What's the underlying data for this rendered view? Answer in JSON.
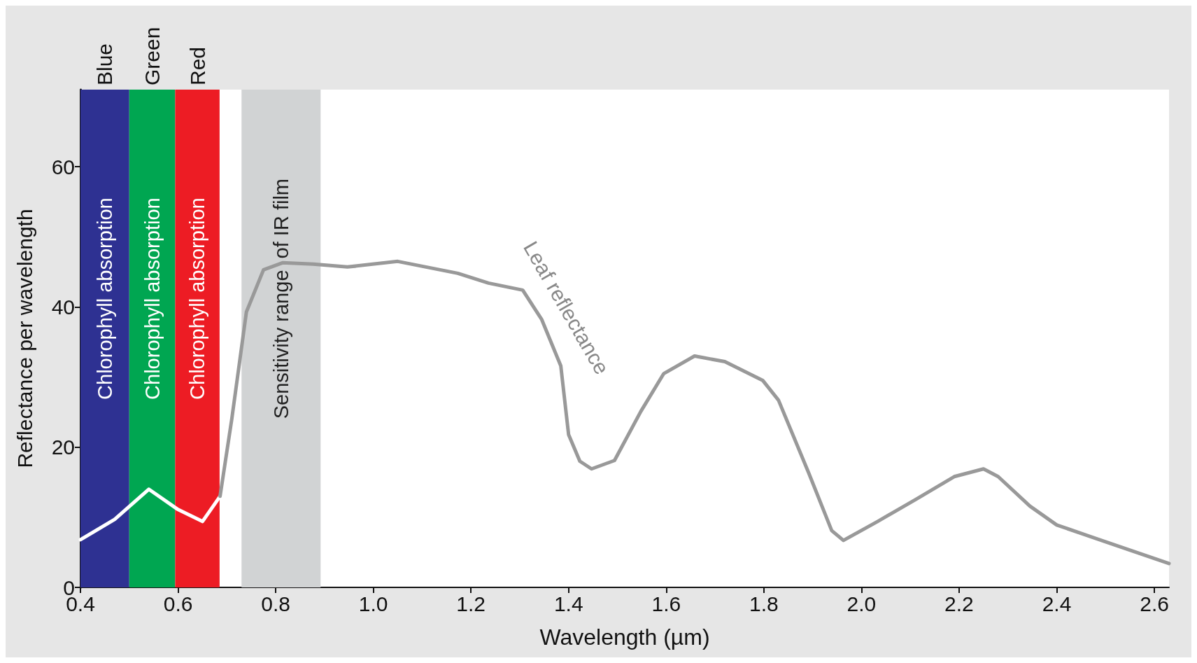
{
  "chart_data": {
    "type": "line",
    "xlabel": "Wavelength (µm)",
    "ylabel": "Reflectance per wavelength",
    "xlim": [
      0.4,
      2.63
    ],
    "ylim": [
      0,
      71
    ],
    "xticks": [
      0.4,
      0.6,
      0.8,
      {
        "value": 1,
        "label": "1.0"
      },
      1.2,
      1.4,
      1.6,
      1.8,
      {
        "value": 2,
        "label": "2.0"
      },
      2.2,
      2.4,
      2.6
    ],
    "yticks": [
      0,
      20,
      40,
      60
    ],
    "grid": false,
    "marker": "none",
    "line_style": "solid",
    "series": [
      {
        "color": "#ffffff",
        "x": [
          0.4,
          0.47,
          0.54,
          0.6,
          0.65,
          0.686
        ],
        "values": [
          6.8,
          9.7,
          14.0,
          11.1,
          9.4,
          13
        ]
      },
      {
        "color": "#999999",
        "x": [
          0.686,
          0.71,
          0.74,
          0.775,
          0.814,
          0.877,
          0.947,
          1.05,
          1.173,
          1.236,
          1.306,
          1.345,
          1.384,
          1.4,
          1.423,
          1.447,
          1.494,
          1.548,
          1.595,
          1.658,
          1.72,
          1.798,
          1.83,
          1.892,
          1.939,
          1.963,
          2.033,
          2.11,
          2.19,
          2.25,
          2.28,
          2.345,
          2.4,
          2.5,
          2.63
        ],
        "values": [
          13,
          24,
          39.3,
          45.3,
          46.3,
          46.1,
          45.7,
          46.5,
          44.8,
          43.4,
          42.4,
          38.2,
          31.6,
          21.8,
          18,
          16.9,
          18.1,
          25.1,
          30.5,
          33,
          32.2,
          29.5,
          26.7,
          16.3,
          8.1,
          6.7,
          9.4,
          12.5,
          15.8,
          16.9,
          15.8,
          11.6,
          8.9,
          6.5,
          3.4
        ]
      }
    ],
    "bands": [
      {
        "axis": "x",
        "from": 0.4,
        "to": 0.5,
        "label": "Blue",
        "color": "#2e3192"
      },
      {
        "axis": "x",
        "from": 0.5,
        "to": 0.594,
        "label": "Green",
        "color": "#00a651"
      },
      {
        "axis": "x",
        "from": 0.594,
        "to": 0.685,
        "label": "Red",
        "color": "#ed1c24"
      },
      {
        "axis": "x",
        "from": 0.73,
        "to": 0.892,
        "color": "#d1d3d4"
      }
    ],
    "annotations": [
      "Chlorophyll absorption",
      "Chlorophyll absorption",
      "Chlorophyll absorption",
      "Sensitivity range  of IR film",
      "Leaf reflectance"
    ]
  }
}
